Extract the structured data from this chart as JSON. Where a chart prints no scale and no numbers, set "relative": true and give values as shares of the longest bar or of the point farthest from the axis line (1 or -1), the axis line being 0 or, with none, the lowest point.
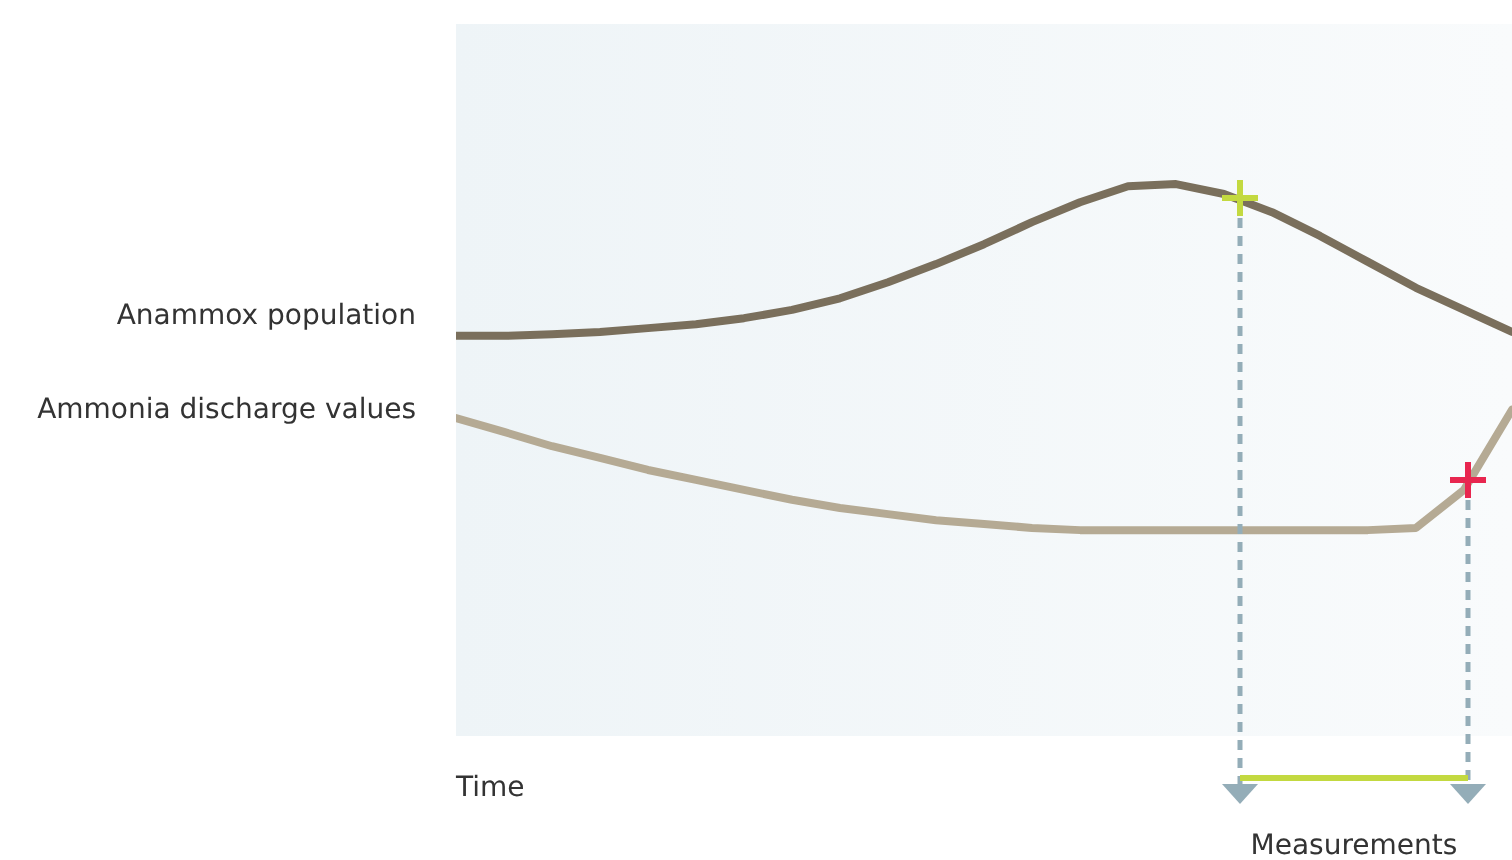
{
  "chart_data": {
    "type": "line",
    "relative": true,
    "xlabel": "Time",
    "legend": false,
    "marker": "none",
    "line_style": "solid",
    "categories": [
      null,
      null,
      null,
      null,
      null,
      null,
      null,
      null,
      null,
      null,
      null,
      null,
      null,
      null,
      null,
      null,
      null,
      null,
      null,
      null,
      null,
      null,
      null
    ],
    "series": [
      {
        "name": "Anammox population",
        "color": "#7a6f5c",
        "values": [
          0.725,
          0.725,
          0.728,
          0.732,
          0.739,
          0.746,
          0.757,
          0.772,
          0.793,
          0.822,
          0.855,
          0.891,
          0.931,
          0.967,
          0.996,
          1,
          0.982,
          0.949,
          0.906,
          0.859,
          0.812,
          0.772,
          0.732
        ]
      },
      {
        "name": "Ammonia discharge values",
        "color": "#b5aa94",
        "values": [
          0.576,
          0.551,
          0.525,
          0.504,
          0.482,
          0.464,
          0.446,
          0.428,
          0.413,
          0.402,
          0.391,
          0.384,
          0.377,
          0.373,
          0.373,
          0.373,
          0.373,
          0.373,
          0.373,
          0.373,
          0.377,
          0.446,
          0.591
        ]
      }
    ],
    "annotations": [
      "Measurements"
    ]
  }
}
